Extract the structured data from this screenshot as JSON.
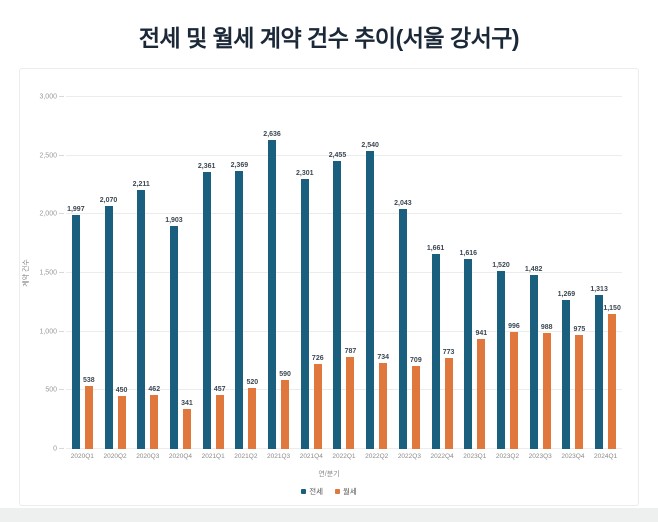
{
  "page": {
    "title": "전세 및 월세 계약 건수 추이(서울 강서구)"
  },
  "chart_data": {
    "type": "bar",
    "title": "전세 및 월세 계약 건수 추이(서울 강서구)",
    "xlabel": "연/분기",
    "ylabel": "계약 건수",
    "ylim": [
      0,
      3000
    ],
    "ytick_step": 500,
    "ytick_labels": [
      "0",
      "500",
      "1,000",
      "1,500",
      "2,000",
      "2,500",
      "3,000"
    ],
    "grid": true,
    "legend_position": "bottom",
    "bar_labels_shown": true,
    "categories": [
      "2020Q1",
      "2020Q2",
      "2020Q3",
      "2020Q4",
      "2021Q1",
      "2021Q2",
      "2021Q3",
      "2021Q4",
      "2022Q1",
      "2022Q2",
      "2022Q3",
      "2022Q4",
      "2023Q1",
      "2023Q2",
      "2023Q3",
      "2023Q4",
      "2024Q1"
    ],
    "series": [
      {
        "name": "전세",
        "color": "#1b5f7e",
        "values": [
          1997,
          2070,
          2211,
          1903,
          2361,
          2369,
          2636,
          2301,
          2455,
          2540,
          2043,
          1661,
          1616,
          1520,
          1482,
          1269,
          1313
        ]
      },
      {
        "name": "월세",
        "color": "#e0773c",
        "values": [
          538,
          450,
          462,
          341,
          457,
          520,
          590,
          726,
          787,
          734,
          709,
          773,
          941,
          996,
          988,
          975,
          1150
        ]
      }
    ]
  }
}
